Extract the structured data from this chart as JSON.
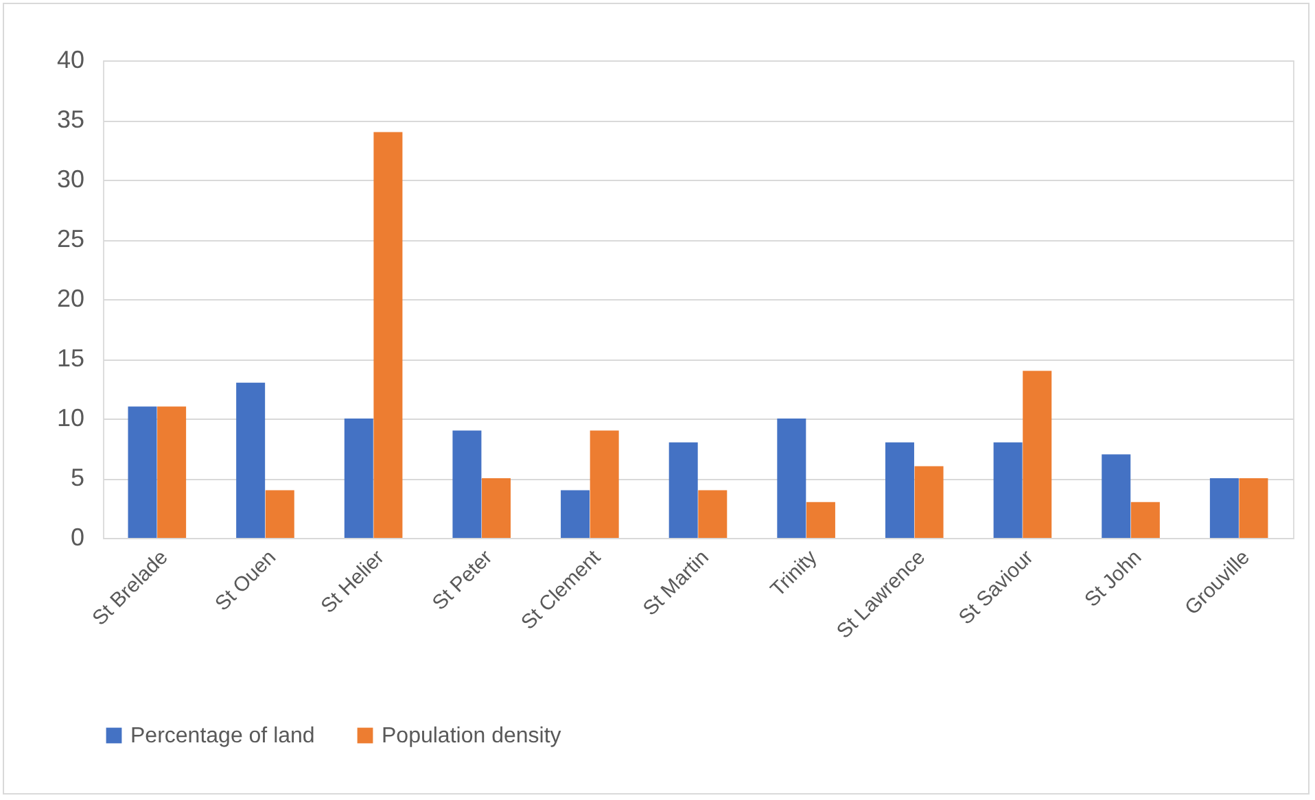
{
  "chart_data": {
    "type": "bar",
    "categories": [
      "St Brelade",
      "St Ouen",
      "St Helier",
      "St Peter",
      "St Clement",
      "St Martin",
      "Trinity",
      "St Lawrence",
      "St Saviour",
      "St John",
      "Grouville"
    ],
    "series": [
      {
        "name": "Percentage of land",
        "color": "#4472c4",
        "values": [
          11,
          13,
          10,
          9,
          4,
          8,
          10,
          8,
          8,
          7,
          5
        ]
      },
      {
        "name": "Population density",
        "color": "#ed7d31",
        "values": [
          11,
          4,
          34,
          5,
          9,
          4,
          3,
          6,
          14,
          3,
          5
        ]
      }
    ],
    "ylim": [
      0,
      40
    ],
    "yticks": [
      0,
      5,
      10,
      15,
      20,
      25,
      30,
      35,
      40
    ],
    "grid": "y",
    "legend": "bottom"
  }
}
